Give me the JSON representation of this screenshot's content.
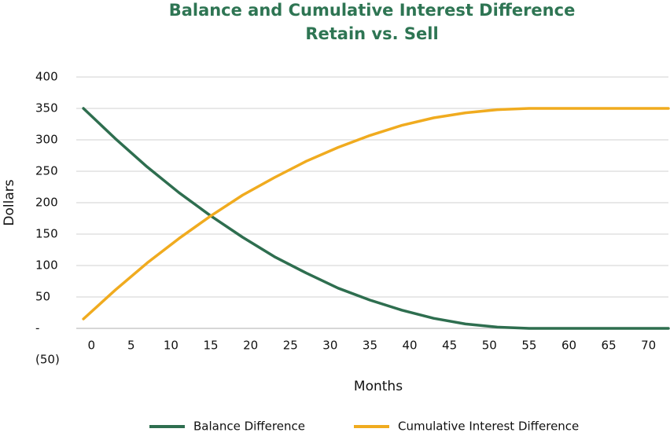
{
  "chart_data": {
    "type": "line",
    "title": "Balance and Cumulative Interest Difference",
    "subtitle": "Retain vs. Sell",
    "x_label": "Months",
    "y_label": "Dollars",
    "x": [
      -1,
      3,
      7,
      11,
      15,
      19,
      23,
      27,
      31,
      35,
      39,
      43,
      47,
      51,
      55,
      59,
      63,
      67,
      71,
      72.5
    ],
    "series": [
      {
        "name": "Balance Difference",
        "color": "#2e6e4f",
        "values": [
          350,
          302,
          257,
          216,
          179,
          145,
          114,
          88,
          64,
          45,
          29,
          16,
          7,
          2,
          0,
          0,
          0,
          0,
          0,
          0
        ]
      },
      {
        "name": "Cumulative Interest Difference",
        "color": "#f0ab1f",
        "values": [
          15,
          61,
          104,
          143,
          179,
          212,
          240,
          266,
          288,
          307,
          323,
          335,
          343,
          348,
          350,
          350,
          350,
          350,
          350,
          350
        ]
      }
    ],
    "xlim": [
      -1.9,
      72.5
    ],
    "xticks": [
      0,
      5,
      10,
      15,
      20,
      25,
      30,
      35,
      40,
      45,
      50,
      55,
      60,
      65,
      70
    ],
    "ylim": [
      -50,
      400
    ],
    "yticks": [
      {
        "value": -50,
        "label": "(50)"
      },
      {
        "value": 0,
        "label": "-"
      },
      50,
      100,
      150,
      200,
      250,
      300,
      350,
      400
    ],
    "grid": true,
    "legend": "bottom"
  }
}
